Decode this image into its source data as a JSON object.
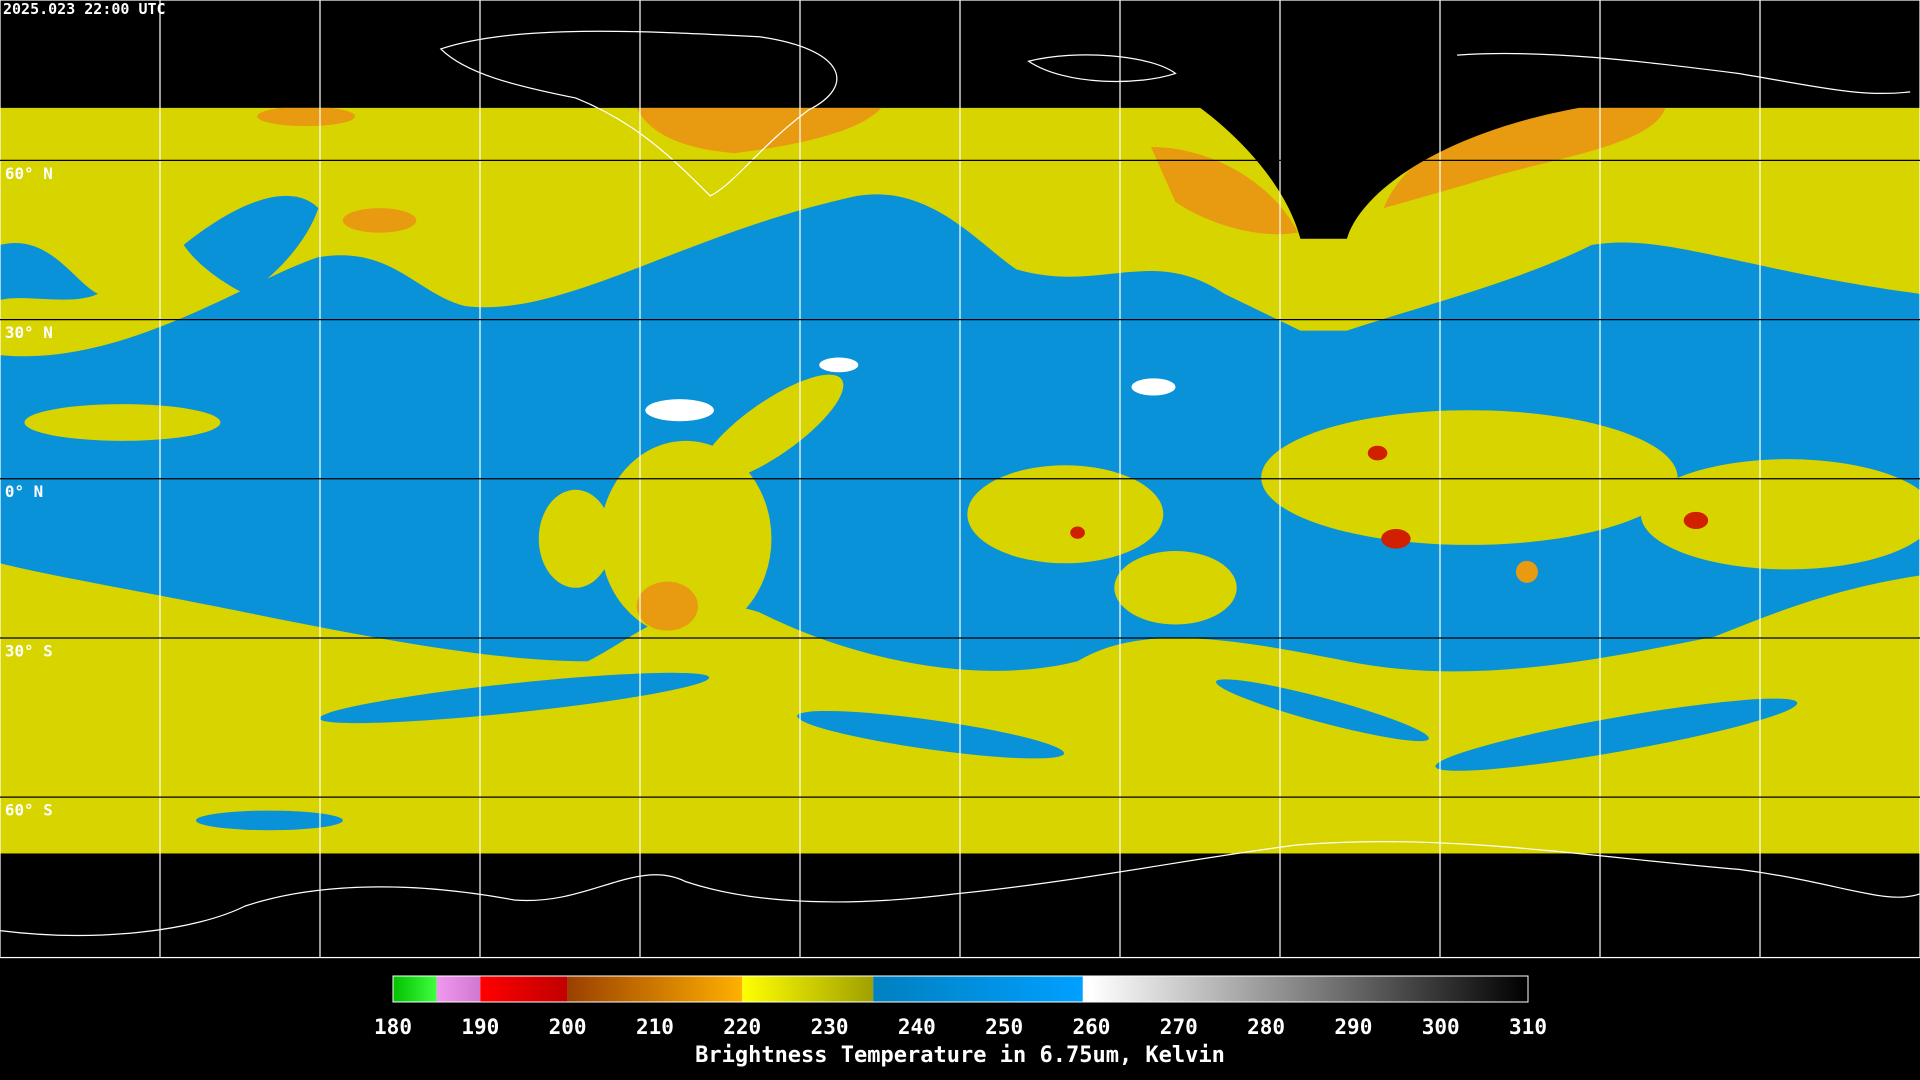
{
  "header": {
    "timestamp": "2025.023 22:00 UTC"
  },
  "map": {
    "latitudes": [
      {
        "value": 60,
        "label": "60° N"
      },
      {
        "value": 30,
        "label": "30° N"
      },
      {
        "value": 0,
        "label": "0° N"
      },
      {
        "value": -30,
        "label": "30° S"
      },
      {
        "value": -60,
        "label": "60° S"
      }
    ]
  },
  "colorbar": {
    "title": "Brightness Temperature in 6.75um, Kelvin",
    "range": [
      180,
      310
    ],
    "ticks": [
      180,
      190,
      200,
      210,
      220,
      230,
      240,
      250,
      260,
      270,
      280,
      290,
      300,
      310
    ],
    "segments": [
      {
        "from": 180,
        "to": 185,
        "colors": [
          "#00c000",
          "#40ff40"
        ]
      },
      {
        "from": 185,
        "to": 190,
        "colors": [
          "#f098f0",
          "#d078d0"
        ]
      },
      {
        "from": 190,
        "to": 200,
        "colors": [
          "#ff0000",
          "#c00000"
        ]
      },
      {
        "from": 200,
        "to": 220,
        "colors": [
          "#9a4000",
          "#ffb000"
        ]
      },
      {
        "from": 220,
        "to": 235,
        "colors": [
          "#ffff00",
          "#a0a000"
        ]
      },
      {
        "from": 235,
        "to": 259,
        "colors": [
          "#0080c0",
          "#00a0ff"
        ]
      },
      {
        "from": 260,
        "to": 310,
        "colors": [
          "#ffffff",
          "#000000"
        ]
      }
    ]
  }
}
